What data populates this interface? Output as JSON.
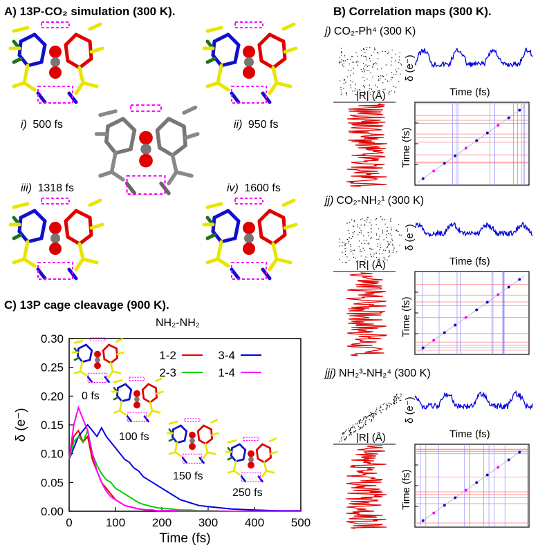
{
  "panel_a": {
    "title": "A) 13P-CO₂ simulation (300 K).",
    "snapshots": [
      {
        "roman": "i)",
        "time": "500 fs"
      },
      {
        "roman": "ii)",
        "time": "950 fs"
      },
      {
        "roman": "iii)",
        "time": "1318 fs"
      },
      {
        "roman": "iv)",
        "time": "1600 fs"
      }
    ]
  },
  "panel_b": {
    "title": "B) Correlation maps (300 K).",
    "maps": [
      {
        "roman": "j)",
        "label": "CO₂-Ph⁴",
        "temp": "(300 K)",
        "ylabel_top": "δ (e⁻)",
        "xlabel_top_left": "|R| (Å)",
        "xlabel_top_right": "Time (fs)",
        "ylabel_map": "Time (fs)"
      },
      {
        "roman": "jj)",
        "label": "CO₂-NH₂¹",
        "temp": "(300 K)",
        "ylabel_top": "δ (e⁻)",
        "xlabel_top_left": "|R| (Å)",
        "xlabel_top_right": "Time (fs)",
        "ylabel_map": "Time (fs)"
      },
      {
        "roman": "jjj)",
        "label": "NH₂³-NH₂⁴",
        "temp": "(300 K)",
        "ylabel_top": "δ (e⁻)",
        "xlabel_top_left": "|R| (Å)",
        "xlabel_top_right": "Time (fs)",
        "ylabel_map": "Time (fs)"
      }
    ]
  },
  "panel_c": {
    "title": "C) 13P cage cleavage (900 K).",
    "snapshot_times": [
      "0 fs",
      "100 fs",
      "150 fs",
      "250 fs"
    ]
  },
  "colors": {
    "red": "#e00000",
    "green": "#00cc00",
    "blue": "#0000dd",
    "magenta": "#ff00ff",
    "yellow": "#e6e600",
    "dark_blue": "#1010cc"
  },
  "chart_data": {
    "type": "line",
    "title": "NH₂-NH₂",
    "xlabel": "Time (fs)",
    "ylabel": "δ (e⁻)",
    "xlim": [
      0,
      500
    ],
    "ylim": [
      0,
      0.3
    ],
    "xticks": [
      "0",
      "100",
      "200",
      "300",
      "400",
      "500"
    ],
    "yticks": [
      "0.00",
      "0.05",
      "0.10",
      "0.15",
      "0.20",
      "0.25",
      "0.30"
    ],
    "x": [
      0,
      10,
      20,
      30,
      40,
      50,
      60,
      70,
      80,
      90,
      100,
      110,
      120,
      130,
      140,
      150,
      160,
      170,
      180,
      190,
      200,
      220,
      240,
      260,
      280,
      300,
      350,
      400,
      450,
      500
    ],
    "series": [
      {
        "name": "1-2",
        "color": "#e00000",
        "values": [
          0.09,
          0.13,
          0.14,
          0.12,
          0.13,
          0.09,
          0.07,
          0.05,
          0.04,
          0.03,
          0.02,
          0.015,
          0.01,
          0.008,
          0.006,
          0.004,
          0.003,
          0.002,
          0.002,
          0.001,
          0.001,
          0.001,
          0.0,
          0.0,
          0.0,
          0.0,
          0.0,
          0.0,
          0.0,
          0.0
        ]
      },
      {
        "name": "3-4",
        "color": "#0000dd",
        "values": [
          0.09,
          0.11,
          0.13,
          0.14,
          0.15,
          0.14,
          0.13,
          0.145,
          0.13,
          0.12,
          0.11,
          0.1,
          0.09,
          0.085,
          0.075,
          0.07,
          0.06,
          0.055,
          0.05,
          0.045,
          0.04,
          0.03,
          0.02,
          0.015,
          0.01,
          0.008,
          0.004,
          0.002,
          0.001,
          0.001
        ]
      },
      {
        "name": "2-3",
        "color": "#00cc00",
        "values": [
          0.09,
          0.12,
          0.13,
          0.12,
          0.14,
          0.1,
          0.08,
          0.065,
          0.055,
          0.05,
          0.04,
          0.035,
          0.03,
          0.025,
          0.02,
          0.015,
          0.012,
          0.01,
          0.008,
          0.006,
          0.005,
          0.004,
          0.002,
          0.002,
          0.001,
          0.001,
          0.0,
          0.0,
          0.0,
          0.0
        ]
      },
      {
        "name": "1-4",
        "color": "#ff00ff",
        "values": [
          0.09,
          0.15,
          0.18,
          0.16,
          0.14,
          0.1,
          0.07,
          0.05,
          0.035,
          0.025,
          0.02,
          0.015,
          0.01,
          0.008,
          0.006,
          0.004,
          0.003,
          0.002,
          0.002,
          0.001,
          0.001,
          0.001,
          0.0,
          0.0,
          0.0,
          0.0,
          0.0,
          0.0,
          0.0,
          0.0
        ]
      }
    ],
    "legend": "top-right, inside plot, 2 columns",
    "grid": false
  }
}
